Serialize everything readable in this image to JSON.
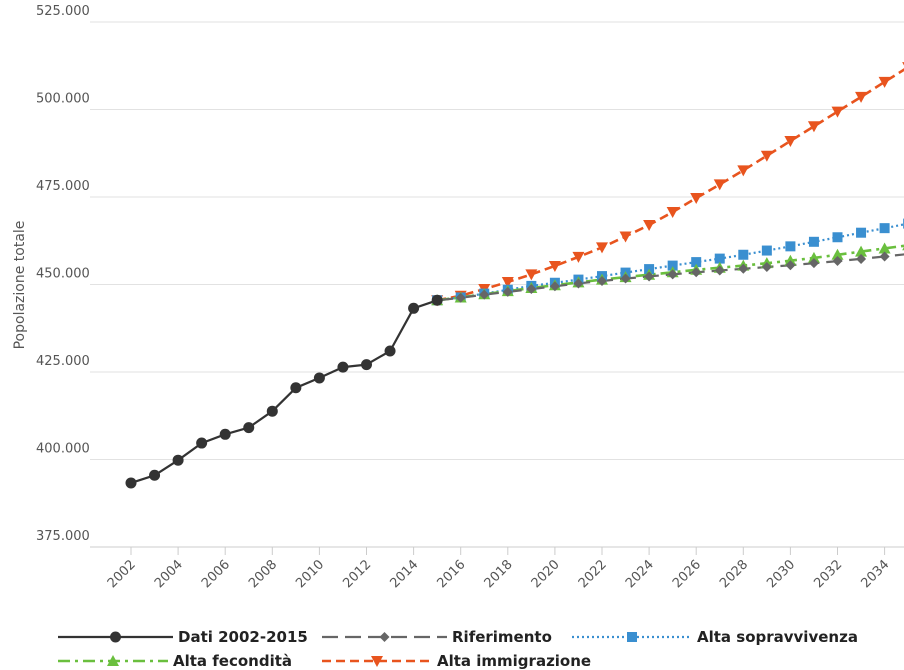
{
  "chart_data": {
    "type": "line",
    "title": "",
    "xlabel": "",
    "ylabel": "Popolazione totale",
    "ylim": [
      375000,
      525000
    ],
    "xlim": [
      2002,
      2035
    ],
    "y_ticks": [
      375000,
      400000,
      425000,
      450000,
      475000,
      500000,
      525000
    ],
    "y_tick_labels": [
      "375.000",
      "400.000",
      "425.000",
      "450.000",
      "475.000",
      "500.000",
      "525.000"
    ],
    "x_ticks": [
      2002,
      2004,
      2006,
      2008,
      2010,
      2012,
      2014,
      2016,
      2018,
      2020,
      2022,
      2024,
      2026,
      2028,
      2030,
      2032,
      2034
    ],
    "x_tick_labels": [
      "2002",
      "2004",
      "2006",
      "2008",
      "2010",
      "2012",
      "2014",
      "2016",
      "2018",
      "2020",
      "2022",
      "2024",
      "2026",
      "2028",
      "2030",
      "2032",
      "2034"
    ],
    "grid": "horizontal",
    "legend_position": "bottom",
    "series": [
      {
        "name": "Dati 2002-2015",
        "color": "#333333",
        "dash": "solid",
        "marker": "circle",
        "x": [
          2002,
          2003,
          2004,
          2005,
          2006,
          2007,
          2008,
          2009,
          2010,
          2011,
          2012,
          2013,
          2014,
          2015
        ],
        "y": [
          393300,
          395500,
          399800,
          404700,
          407200,
          409100,
          413800,
          420500,
          423300,
          426400,
          427100,
          431000,
          443200,
          445500
        ]
      },
      {
        "name": "Riferimento",
        "color": "#666666",
        "dash": "long-dash",
        "marker": "diamond",
        "x": [
          2015,
          2016,
          2017,
          2018,
          2019,
          2020,
          2021,
          2022,
          2023,
          2024,
          2025,
          2026,
          2027,
          2028,
          2029,
          2030,
          2031,
          2032,
          2033,
          2034,
          2035
        ],
        "y": [
          445500,
          446200,
          447100,
          447900,
          448700,
          449500,
          450300,
          451000,
          451700,
          452300,
          452900,
          453500,
          454000,
          454500,
          455000,
          455500,
          456100,
          456700,
          457300,
          458000,
          458700
        ]
      },
      {
        "name": "Alta sopravvivenza",
        "color": "#3a8fd0",
        "dash": "dotted",
        "marker": "square",
        "x": [
          2015,
          2016,
          2017,
          2018,
          2019,
          2020,
          2021,
          2022,
          2023,
          2024,
          2025,
          2026,
          2027,
          2028,
          2029,
          2030,
          2031,
          2032,
          2033,
          2034,
          2035
        ],
        "y": [
          445500,
          446300,
          447400,
          448500,
          449600,
          450500,
          451400,
          452400,
          453400,
          454400,
          455400,
          456400,
          457400,
          458500,
          459700,
          460900,
          462200,
          463500,
          464800,
          466100,
          467400
        ]
      },
      {
        "name": "Alta fecondità",
        "color": "#6abf3e",
        "dash": "dash-dot",
        "marker": "triangle-up",
        "x": [
          2015,
          2016,
          2017,
          2018,
          2019,
          2020,
          2021,
          2022,
          2023,
          2024,
          2025,
          2026,
          2027,
          2028,
          2029,
          2030,
          2031,
          2032,
          2033,
          2034,
          2035
        ],
        "y": [
          445500,
          446300,
          447200,
          448100,
          449000,
          449800,
          450600,
          451400,
          452100,
          452800,
          453500,
          454200,
          454800,
          455400,
          456100,
          456800,
          457600,
          458500,
          459400,
          460300,
          461200
        ]
      },
      {
        "name": "Alta immigrazione",
        "color": "#e8541e",
        "dash": "dashed",
        "marker": "triangle-down",
        "x": [
          2015,
          2016,
          2017,
          2018,
          2019,
          2020,
          2021,
          2022,
          2023,
          2024,
          2025,
          2026,
          2027,
          2028,
          2029,
          2030,
          2031,
          2032,
          2033,
          2034,
          2035
        ],
        "y": [
          445500,
          446800,
          448700,
          450700,
          452900,
          455300,
          457900,
          460600,
          463700,
          467000,
          470700,
          474700,
          478600,
          482600,
          486800,
          491000,
          495200,
          499400,
          503600,
          507900,
          512100
        ]
      }
    ]
  }
}
